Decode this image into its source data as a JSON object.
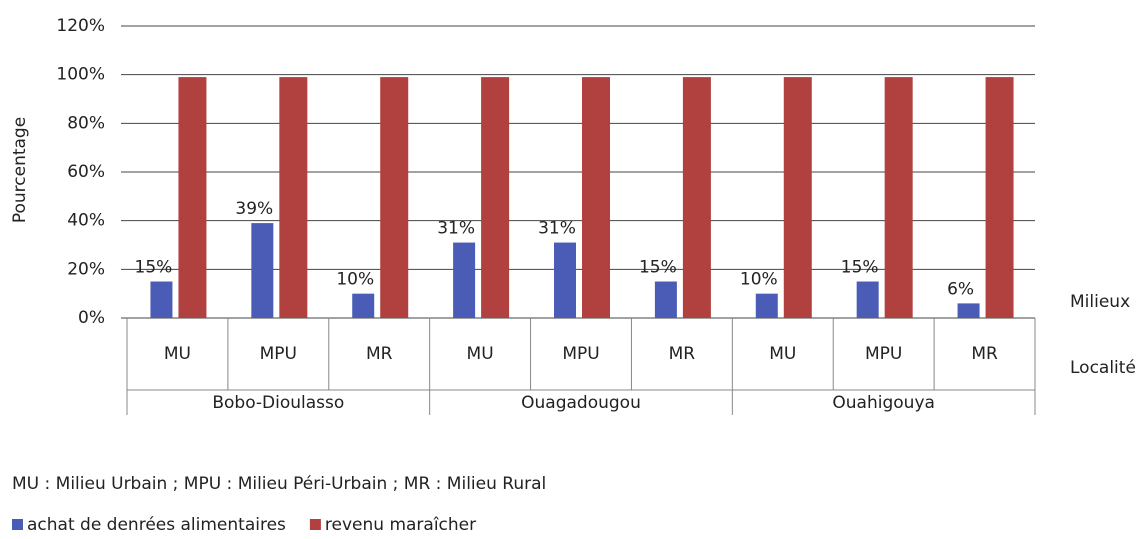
{
  "chart_data": {
    "type": "bar",
    "ylabel": "Pourcentage",
    "categories": [
      "MU",
      "MPU",
      "MR",
      "MU",
      "MPU",
      "MR",
      "MU",
      "MPU",
      "MR"
    ],
    "groups": [
      "Bobo-Dioulasso",
      "Ouagadougou",
      "Ouahigouya"
    ],
    "level_labels": [
      "Milieux",
      "Localité"
    ],
    "note": "MU : Milieu Urbain ; MPU : Milieu Péri-Urbain ; MR : Milieu Rural",
    "series": [
      {
        "name": "achat de denrées alimentaires",
        "color": "#4a5cb5",
        "values": [
          15,
          39,
          10,
          31,
          31,
          15,
          10,
          15,
          6
        ],
        "value_labels": [
          "15%",
          "39%",
          "10%",
          "31%",
          "31%",
          "15%",
          "10%",
          "15%",
          "6%"
        ]
      },
      {
        "name": "revenu maraîcher",
        "color": "#b0413e",
        "values": [
          99,
          99,
          99,
          99,
          99,
          99,
          99,
          99,
          99
        ]
      }
    ],
    "ylim": [
      0,
      120
    ],
    "yticks": [
      {
        "value": 0,
        "label": "0%"
      },
      {
        "value": 20,
        "label": "20%"
      },
      {
        "value": 40,
        "label": "40%"
      },
      {
        "value": 60,
        "label": "60%"
      },
      {
        "value": 80,
        "label": "80%"
      },
      {
        "value": 100,
        "label": "100%"
      },
      {
        "value": 120,
        "label": "120%"
      }
    ],
    "grid": true
  }
}
